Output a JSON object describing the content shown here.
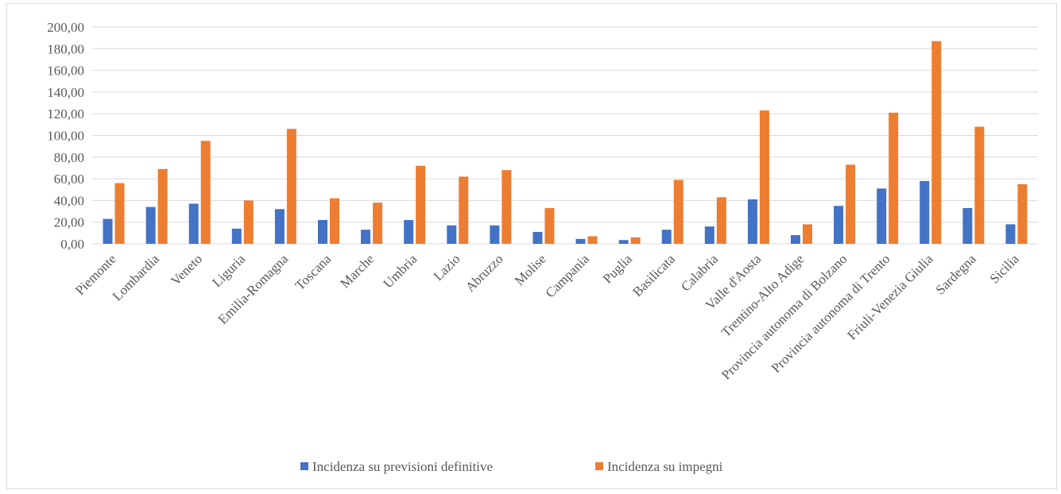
{
  "chart_data": {
    "type": "bar",
    "categories": [
      "Piemonte",
      "Lombardia",
      "Veneto",
      "Liguria",
      "Emilia-Romagna",
      "Toscana",
      "Marche",
      "Umbria",
      "Lazio",
      "Abruzzo",
      "Molise",
      "Campania",
      "Puglia",
      "Basilicata",
      "Calabria",
      "Valle d'Aosta",
      "Trentino-Alto Adige",
      "Provincia autonoma di Bolzano",
      "Provincia autonoma di Trento",
      "Friuli-Venezia Giulia",
      "Sardegna",
      "Sicilia"
    ],
    "series": [
      {
        "name": "Incidenza su previsioni definitive",
        "color": "#4472c4",
        "values": [
          23,
          34,
          37,
          14,
          32,
          22,
          13,
          22,
          17,
          17,
          11,
          4.5,
          3.5,
          13,
          16,
          41,
          8,
          35,
          51,
          58,
          33,
          18
        ]
      },
      {
        "name": "Incidenza su impegni",
        "color": "#ed7d31",
        "values": [
          56,
          69,
          95,
          40,
          106,
          42,
          38,
          72,
          62,
          68,
          33,
          7,
          6,
          59,
          43,
          123,
          18,
          73,
          121,
          187,
          108,
          55
        ]
      }
    ],
    "yticks": [
      "0,00",
      "20,00",
      "40,00",
      "60,00",
      "80,00",
      "100,00",
      "120,00",
      "140,00",
      "160,00",
      "180,00",
      "200,00"
    ],
    "ylim": [
      0,
      200
    ],
    "grid": true,
    "legend_position": "bottom"
  }
}
